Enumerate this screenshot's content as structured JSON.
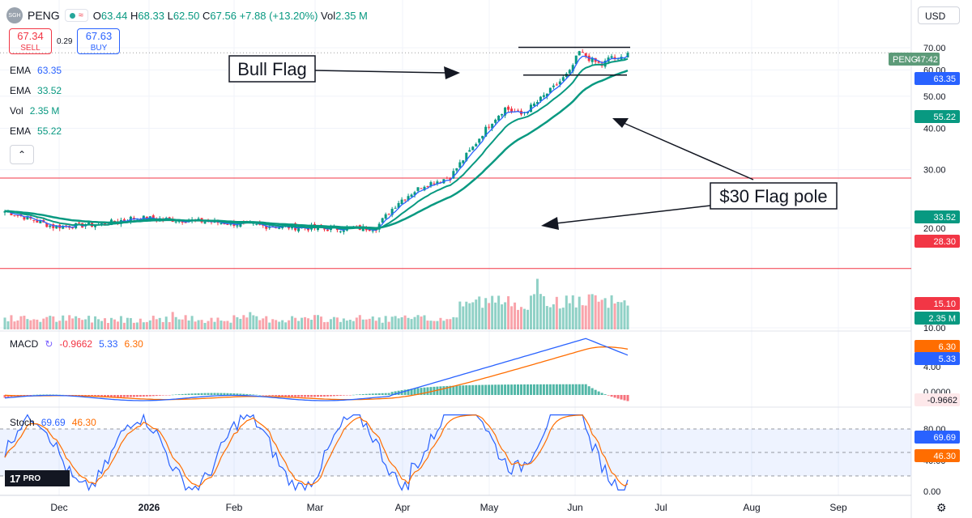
{
  "header": {
    "logo_text": "SGH",
    "symbol": "PENG",
    "ohlc": {
      "o_label": "O",
      "o": "63.44",
      "h_label": "H",
      "h": "68.33",
      "l_label": "L",
      "l": "62.50",
      "c_label": "C",
      "c": "67.56",
      "change": "+7.88 (+13.20%)",
      "vol_label": "Vol",
      "vol": "2.35 M"
    }
  },
  "trade": {
    "sell_price": "67.34",
    "sell_label": "SELL",
    "spread": "0.29",
    "buy_price": "67.63",
    "buy_label": "BUY"
  },
  "indicators": [
    {
      "name": "EMA",
      "value": "63.35",
      "color": "#2962ff"
    },
    {
      "name": "EMA",
      "value": "33.52",
      "color": "#089981"
    },
    {
      "name": "Vol",
      "value": "2.35 M",
      "color": "#089981"
    },
    {
      "name": "EMA",
      "value": "55.22",
      "color": "#089981"
    }
  ],
  "currency": "USD",
  "branding": "PRO",
  "annotations": {
    "bull_flag": "Bull Flag",
    "flag_pole": "$30 Flag pole"
  },
  "price_tags": [
    {
      "label": "PENG",
      "value": "47:42",
      "color": "#5d9b79"
    },
    {
      "value": "63.35",
      "color": "#2962ff"
    },
    {
      "value": "55.22",
      "color": "#089981"
    },
    {
      "value": "33.52",
      "color": "#089981"
    },
    {
      "value": "28.30",
      "color": "#f23645"
    },
    {
      "value": "15.10",
      "color": "#f23645"
    },
    {
      "value": "2.35 M",
      "color": "#089981"
    }
  ],
  "macd": {
    "label": "MACD",
    "hist": "-0.9662",
    "macd": "5.33",
    "signal": "6.30",
    "tags": [
      "6.30",
      "5.33",
      "-0.9662"
    ],
    "ticks": [
      "4.00",
      "0.0000"
    ]
  },
  "stoch": {
    "label": "Stoch",
    "k": "69.69",
    "d": "46.30",
    "tags": [
      "69.69",
      "46.30"
    ],
    "ticks": [
      "80.00",
      "40.00",
      "0.00"
    ]
  },
  "chart_data": {
    "type": "candlestick",
    "symbol": "PENG",
    "x_ticks": [
      "Dec",
      "2026",
      "Feb",
      "Mar",
      "Apr",
      "May",
      "Jun",
      "Jul",
      "Aug",
      "Sep"
    ],
    "y_ticks": [
      "70.00",
      "60.00",
      "50.00",
      "40.00",
      "30.00",
      "20.00",
      "10.00"
    ],
    "y_scale": "log",
    "ylim": [
      10,
      75
    ],
    "horizontal_levels": [
      28.3,
      15.1
    ],
    "last_price": 67.56,
    "ema_values": [
      63.35,
      55.22,
      33.52
    ],
    "flag_levels": [
      70.2,
      57.9
    ],
    "series": [
      {
        "name": "Price",
        "approx_path": [
          [
            0,
            22.5
          ],
          [
            15,
            20.2
          ],
          [
            30,
            20.5
          ],
          [
            40,
            21.5
          ],
          [
            60,
            21
          ],
          [
            80,
            20.3
          ],
          [
            100,
            19.9
          ],
          [
            115,
            20
          ],
          [
            122,
            24
          ],
          [
            130,
            27
          ],
          [
            138,
            28.5
          ],
          [
            145,
            35
          ],
          [
            150,
            41
          ],
          [
            155,
            46
          ],
          [
            160,
            44
          ],
          [
            165,
            48
          ],
          [
            170,
            53
          ],
          [
            175,
            59
          ],
          [
            178,
            68
          ],
          [
            182,
            64
          ],
          [
            185,
            62
          ],
          [
            188,
            66
          ],
          [
            190,
            64
          ],
          [
            193,
            67.56
          ]
        ]
      },
      {
        "name": "EMA",
        "value": 63.35
      },
      {
        "name": "EMA",
        "value": 55.22
      },
      {
        "name": "EMA",
        "value": 33.52
      }
    ]
  }
}
